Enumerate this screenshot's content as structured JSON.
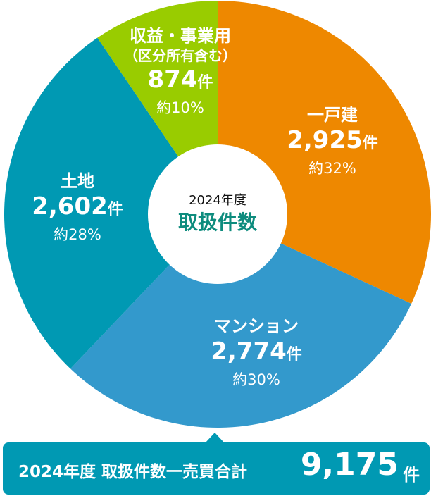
{
  "chart_data": {
    "type": "pie",
    "donut": true,
    "center_label": {
      "year": "2024年度",
      "title": "取扱件数"
    },
    "categories": [
      "一戸建",
      "マンション",
      "土地",
      "収益・事業用"
    ],
    "category_notes": [
      "",
      "",
      "",
      "（区分所有含む）"
    ],
    "values": [
      2925,
      2774,
      2602,
      874
    ],
    "value_labels": [
      "2,925",
      "2,774",
      "2,602",
      "874"
    ],
    "unit": "件",
    "percent_labels": [
      "約32%",
      "約30%",
      "約28%",
      "約10%"
    ],
    "colors": [
      "#EE8800",
      "#3399CC",
      "#0099B3",
      "#99CC00"
    ],
    "start": "top",
    "direction": "clockwise"
  },
  "total": {
    "label": "2024年度 取扱件数一売買合計",
    "value": "9,175",
    "unit": "件",
    "color": "#0099B3"
  }
}
